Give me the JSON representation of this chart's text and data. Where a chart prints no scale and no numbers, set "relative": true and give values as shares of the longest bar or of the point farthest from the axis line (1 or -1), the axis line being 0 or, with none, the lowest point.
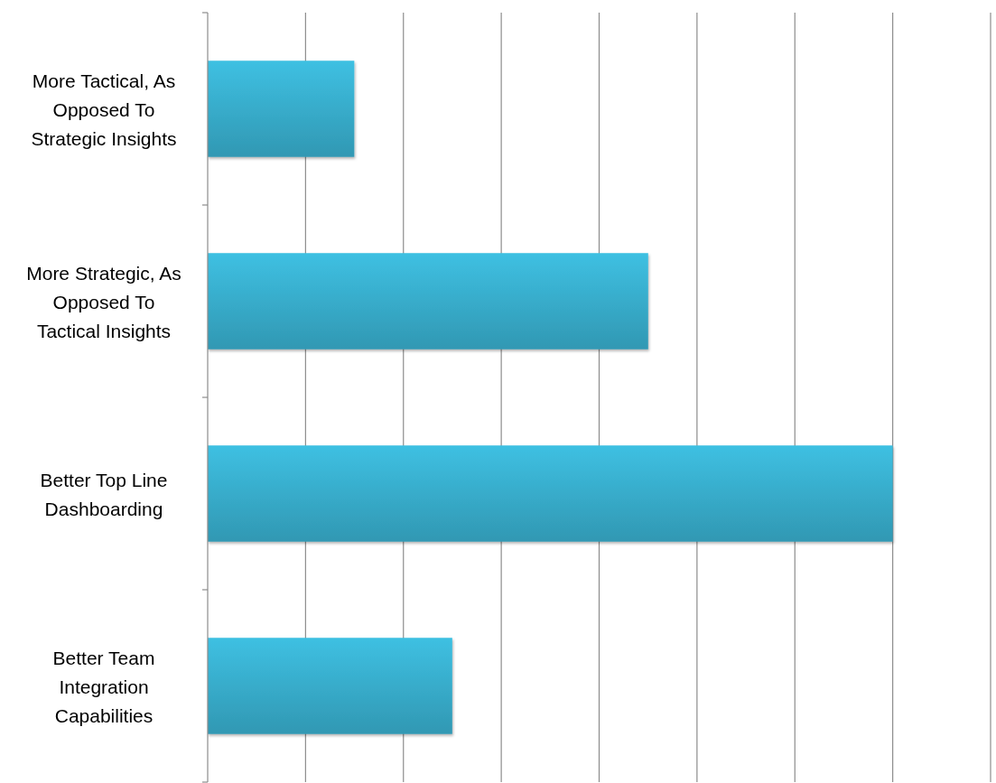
{
  "chart_data": {
    "type": "bar",
    "orientation": "horizontal",
    "relative": true,
    "grid": "x",
    "color": "#3bb6d6",
    "categories": [
      "More Tactical, As Opposed To Strategic Insights",
      "More Strategic, As Opposed To Tactical Insights",
      "Better Top Line Dashboarding",
      "Better Team Integration Capabilities"
    ],
    "values": [
      0.214,
      0.643,
      1,
      0.357
    ]
  }
}
